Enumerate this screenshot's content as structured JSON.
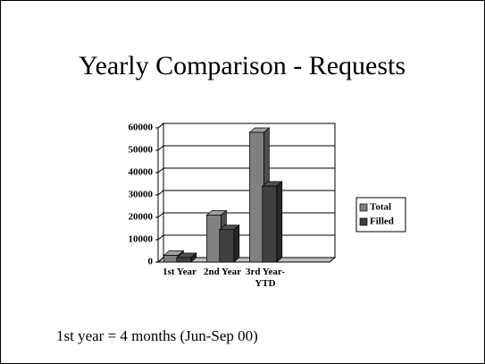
{
  "chart_data": {
    "type": "bar",
    "title": "Yearly Comparison - Requests",
    "categories": [
      "1st Year",
      "2nd Year",
      "3rd Year-YTD",
      null
    ],
    "series": [
      {
        "name": "Total",
        "color": "#808080",
        "values": [
          3000,
          21000,
          58000,
          null
        ]
      },
      {
        "name": "Filled",
        "color": "#404040",
        "values": [
          2000,
          14500,
          34000,
          null
        ]
      }
    ],
    "ylim": [
      0,
      60000
    ],
    "yticks": [
      0,
      10000,
      20000,
      30000,
      40000,
      50000,
      60000
    ],
    "grid": true,
    "legend": "right",
    "annotations": [
      "1st year = 4 months (Jun-Sep 00)"
    ]
  }
}
